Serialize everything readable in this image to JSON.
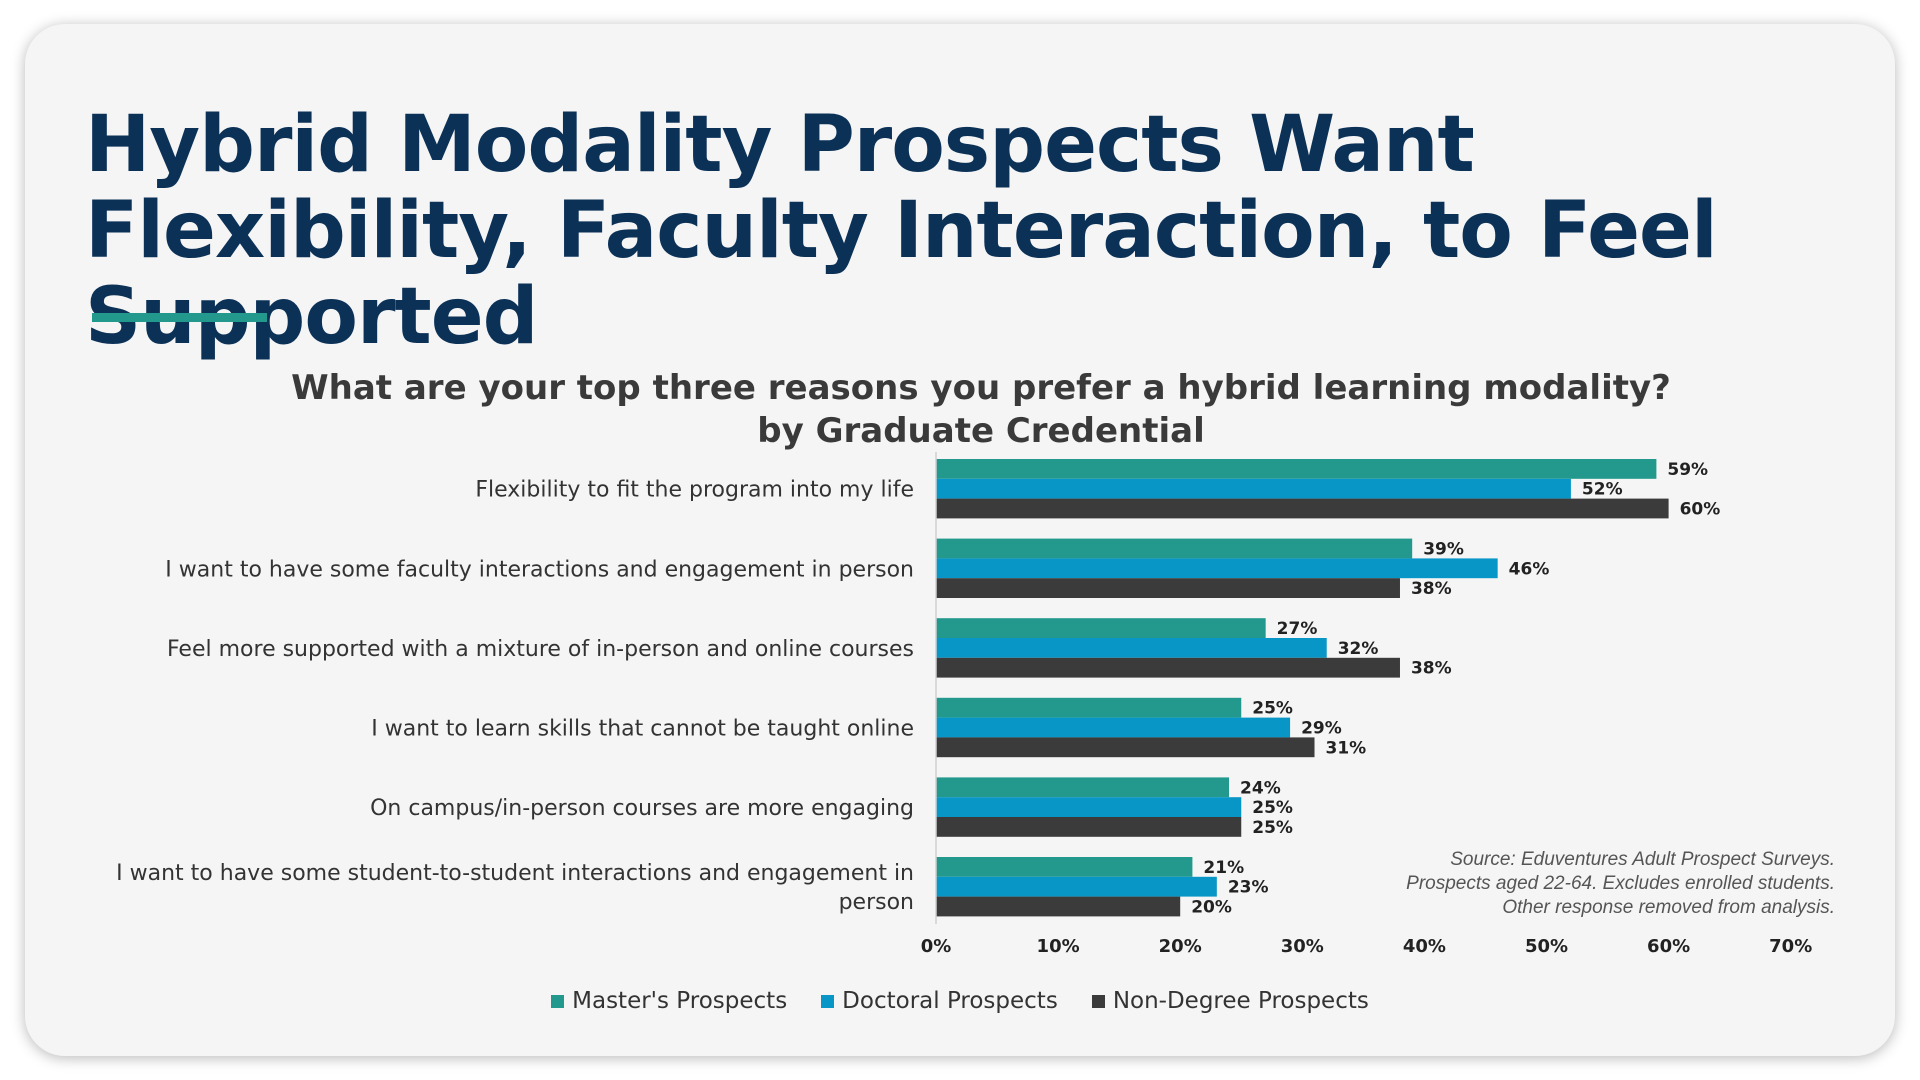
{
  "title": "Hybrid Modality Prospects Want Flexibility, Faculty Interaction, to Feel Supported",
  "subtitle_line1": "What are your top three reasons you prefer a hybrid learning modality?",
  "subtitle_line2": "by Graduate Credential",
  "source_lines": [
    "Source: Eduventures Adult Prospect Surveys.",
    "Prospects aged 22-64. Excludes enrolled students.",
    "Other response removed from analysis."
  ],
  "colors": {
    "accent": "#22998c",
    "title": "#0b3157",
    "masters": "#22998c",
    "doctoral": "#0896c6",
    "non_degree": "#3b3b3b"
  },
  "chart_data": {
    "type": "bar",
    "orientation": "horizontal",
    "categories": [
      [
        "Flexibility to fit the program into my life"
      ],
      [
        "I want to have some faculty interactions and engagement in person"
      ],
      [
        "Feel more supported with a mixture of in-person and online courses"
      ],
      [
        "I want to learn skills that cannot be taught online"
      ],
      [
        "On campus/in-person courses are more engaging"
      ],
      [
        "I want to have some student-to-student interactions and engagement in",
        "person"
      ]
    ],
    "series": [
      {
        "name": "Master's Prospects",
        "color": "#22998c",
        "values": [
          59,
          39,
          27,
          25,
          24,
          21
        ]
      },
      {
        "name": "Doctoral Prospects",
        "color": "#0896c6",
        "values": [
          52,
          46,
          32,
          29,
          25,
          23
        ]
      },
      {
        "name": "Non-Degree Prospects",
        "color": "#3b3b3b",
        "values": [
          60,
          38,
          38,
          31,
          25,
          20
        ]
      }
    ],
    "xlim": [
      0,
      70
    ],
    "xticks": [
      0,
      10,
      20,
      30,
      40,
      50,
      60,
      70
    ],
    "tick_suffix": "%",
    "value_suffix": "%",
    "legend_position": "bottom",
    "grid": false
  }
}
